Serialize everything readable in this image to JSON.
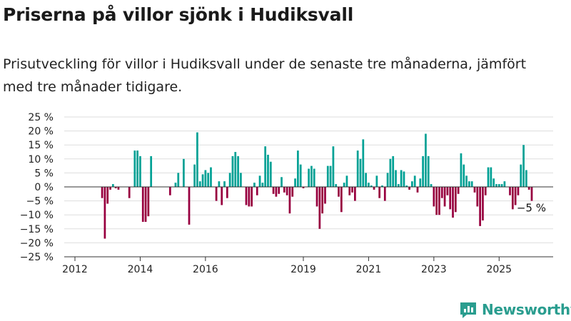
{
  "title": "Priserna på villor sjönk i Hudiksvall",
  "subtitle": "Prisutveckling för villor i Hudiksvall under de senaste tre månaderna, jämfört med tre månader tidigare.",
  "brand": {
    "name": "Newsworthy",
    "icon": "newsworthy-logo-icon",
    "color": "#2a9d8f"
  },
  "colors": {
    "positive": "#00a195",
    "negative": "#98003f",
    "grid": "#dddddd",
    "axis": "#333333"
  },
  "chart_data": {
    "type": "bar",
    "x_start_year": 2012,
    "x_ticks": [
      "2012",
      "2014",
      "2016",
      "2019",
      "2021",
      "2023",
      "2025"
    ],
    "ylim": [
      -25,
      25
    ],
    "yticks": [
      "25 %",
      "20 %",
      "15 %",
      "10 %",
      "5 %",
      "0 %",
      "−5 %",
      "−10 %",
      "−15 %",
      "−20 %",
      "−25 %"
    ],
    "annotation": "−5 %",
    "values": [
      0,
      0,
      0,
      0,
      0,
      0,
      0,
      0,
      0,
      0,
      -4,
      -18.5,
      -6,
      -1,
      1,
      -0.5,
      -1,
      0,
      0,
      0,
      -4,
      0,
      13,
      13,
      11,
      -12.5,
      -12.5,
      -10.5,
      11,
      0,
      0,
      0,
      0,
      0,
      0,
      -3,
      0,
      1.5,
      5,
      0,
      10,
      0,
      -13.5,
      0,
      8,
      19.5,
      2,
      4.5,
      6,
      5,
      7,
      0,
      -5,
      2,
      -6.5,
      2,
      -4,
      5,
      11,
      12.5,
      11,
      5,
      0,
      -6.5,
      -7,
      -7,
      1.5,
      -3,
      4,
      1.5,
      14.5,
      11.5,
      9,
      -2.5,
      -3.5,
      -2.5,
      3.5,
      -2,
      -3,
      -9.5,
      -3.5,
      3,
      13,
      8,
      -0.5,
      0,
      6.5,
      7.5,
      6.5,
      -7,
      -15,
      -9.5,
      -6,
      7.5,
      7.5,
      14.5,
      1,
      -3.5,
      -9,
      1.5,
      4,
      -3,
      -2,
      -5,
      13,
      10,
      17,
      5,
      1.5,
      0.5,
      -1,
      4,
      -4,
      0.5,
      -5,
      5,
      10,
      11,
      6,
      1,
      6,
      5.5,
      0.5,
      -1,
      2,
      4,
      -2,
      3,
      11,
      19,
      11,
      1,
      -7,
      -10,
      -10,
      -4,
      -7,
      -3,
      -8,
      -11,
      -9,
      -2.5,
      12,
      8,
      4,
      2,
      2,
      -2,
      -7,
      -14,
      -12,
      -3,
      7,
      7,
      3,
      1,
      1,
      1,
      2,
      0,
      -3,
      -8,
      -6.5,
      -3,
      8,
      15,
      6,
      -1,
      -5
    ]
  }
}
